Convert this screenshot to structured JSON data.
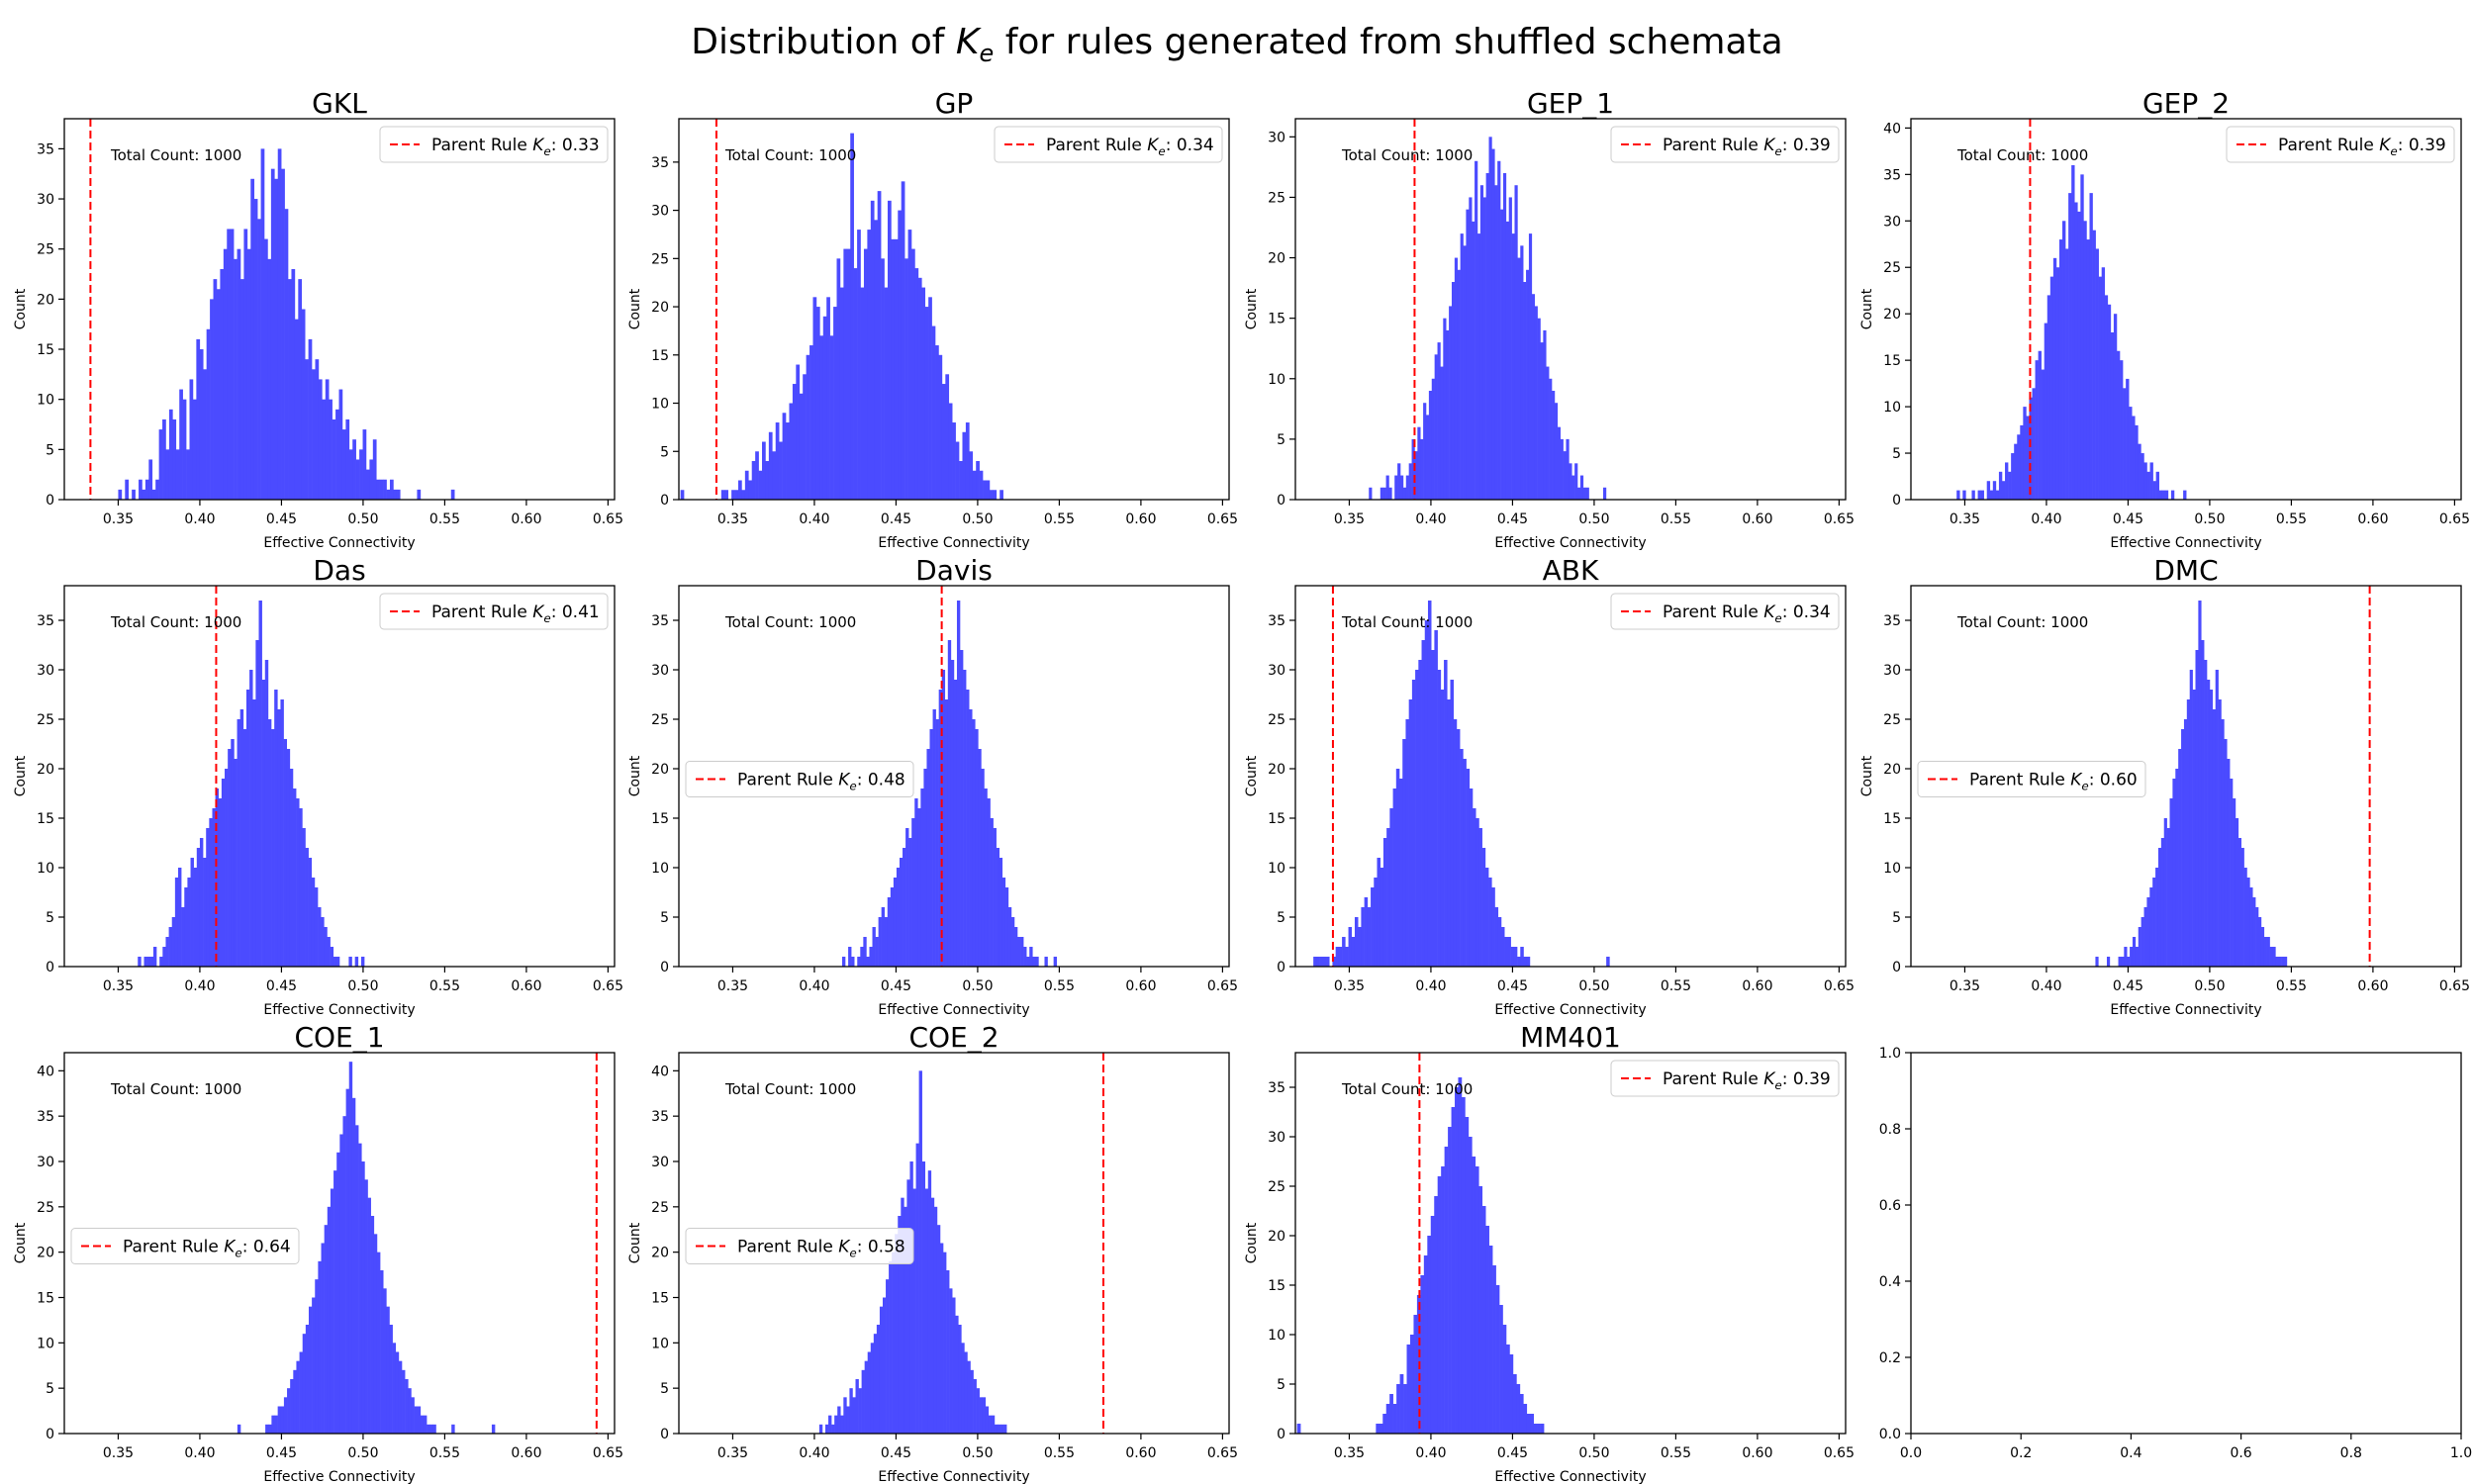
{
  "figure": {
    "title_prefix": "Distribution of ",
    "title_symbol": "K",
    "title_subscript": "e",
    "title_suffix": " for rules generated from shuffled schemata"
  },
  "colors": {
    "hist": "#4b4bff",
    "parent_line": "#ff0000",
    "axes": "#000000"
  },
  "chart_data": [
    {
      "type": "bar",
      "title": "GKL",
      "xlabel": "Effective Connectivity",
      "ylabel": "Count",
      "xlim": [
        0.317,
        0.654
      ],
      "ylim": [
        0,
        38
      ],
      "xticks": [
        "0.35",
        "0.40",
        "0.45",
        "0.50",
        "0.55",
        "0.60",
        "0.65"
      ],
      "yticks": [
        0,
        5,
        10,
        15,
        20,
        25,
        30,
        35
      ],
      "annotation": "Total Count: 1000",
      "parent_ke": 0.333,
      "parent_label": "Parent Rule K_e: 0.33",
      "legend": "upper right",
      "grid": false,
      "bin_start": 0.35,
      "bin_width": 0.00208,
      "values": [
        1,
        0,
        2,
        0,
        1,
        0,
        2,
        1,
        2,
        4,
        1,
        2,
        7,
        8,
        5,
        9,
        8,
        5,
        11,
        10,
        5,
        12,
        10,
        16,
        15,
        13,
        17,
        20,
        22,
        21,
        23,
        25,
        27,
        27,
        24,
        25,
        22,
        27,
        25,
        32,
        30,
        28,
        35,
        26,
        24,
        33,
        32,
        35,
        33,
        29,
        22,
        23,
        18,
        22,
        19,
        14,
        16,
        13,
        14,
        12,
        10,
        12,
        10,
        8,
        9,
        11,
        7,
        8,
        5,
        6,
        4,
        5,
        7,
        3,
        4,
        6,
        2,
        2,
        2,
        1,
        2,
        1,
        1,
        0,
        0,
        0,
        0,
        0,
        1,
        0,
        0,
        0,
        0,
        0,
        0,
        0,
        0,
        0,
        1
      ]
    },
    {
      "type": "bar",
      "title": "GP",
      "xlabel": "Effective Connectivity",
      "ylabel": "Count",
      "xlim": [
        0.317,
        0.654
      ],
      "ylim": [
        0,
        39.5
      ],
      "xticks": [
        "0.35",
        "0.40",
        "0.45",
        "0.50",
        "0.55",
        "0.60",
        "0.65"
      ],
      "yticks": [
        0,
        5,
        10,
        15,
        20,
        25,
        30,
        35
      ],
      "annotation": "Total Count: 1000",
      "parent_ke": 0.34,
      "parent_label": "Parent Rule K_e: 0.34",
      "legend": "upper right",
      "grid": false,
      "bin_start": 0.318,
      "bin_width": 0.00208,
      "values": [
        1,
        0,
        0,
        0,
        0,
        0,
        0,
        0,
        0,
        0,
        0,
        0,
        1,
        1,
        0,
        1,
        1,
        2,
        1,
        3,
        2,
        4,
        5,
        3,
        6,
        4,
        7,
        5,
        8,
        6,
        9,
        8,
        10,
        12,
        14,
        11,
        13,
        15,
        16,
        21,
        20,
        17,
        19,
        21,
        17,
        20,
        25,
        22,
        26,
        26,
        38,
        24,
        28,
        22,
        26,
        28,
        31,
        29,
        32,
        25,
        22,
        31,
        27,
        27,
        30,
        33,
        25,
        28,
        26,
        24,
        23,
        22,
        20,
        21,
        18,
        16,
        15,
        12,
        13,
        10,
        8,
        6,
        4,
        7,
        8,
        5,
        3,
        4,
        3,
        2,
        2,
        1,
        1,
        0,
        1
      ]
    },
    {
      "type": "bar",
      "title": "GEP_1",
      "xlabel": "Effective Connectivity",
      "ylabel": "Count",
      "xlim": [
        0.317,
        0.654
      ],
      "ylim": [
        0,
        31.5
      ],
      "xticks": [
        "0.35",
        "0.40",
        "0.45",
        "0.50",
        "0.55",
        "0.60",
        "0.65"
      ],
      "yticks": [
        0,
        5,
        10,
        15,
        20,
        25,
        30
      ],
      "annotation": "Total Count: 1000",
      "parent_ke": 0.39,
      "parent_label": "Parent Rule K_e: 0.39",
      "legend": "upper right",
      "grid": false,
      "bin_start": 0.362,
      "bin_width": 0.00175,
      "values": [
        1,
        0,
        0,
        0,
        1,
        1,
        2,
        1,
        0,
        2,
        3,
        2,
        1,
        2,
        3,
        5,
        4,
        6,
        5,
        8,
        7,
        9,
        10,
        12,
        13,
        11,
        15,
        14,
        16,
        18,
        20,
        19,
        22,
        21,
        24,
        25,
        23,
        28,
        22,
        26,
        25,
        27,
        30,
        29,
        26,
        28,
        24,
        27,
        23,
        25,
        22,
        26,
        20,
        21,
        18,
        19,
        22,
        17,
        16,
        15,
        13,
        14,
        11,
        10,
        9,
        8,
        6,
        5,
        4,
        5,
        3,
        2,
        3,
        1,
        2,
        1,
        1,
        0,
        0,
        0,
        0,
        0,
        1
      ]
    },
    {
      "type": "bar",
      "title": "GEP_2",
      "xlabel": "Effective Connectivity",
      "ylabel": "Count",
      "xlim": [
        0.317,
        0.654
      ],
      "ylim": [
        0,
        41
      ],
      "xticks": [
        "0.35",
        "0.40",
        "0.45",
        "0.50",
        "0.55",
        "0.60",
        "0.65"
      ],
      "yticks": [
        0,
        5,
        10,
        15,
        20,
        25,
        30,
        35,
        40
      ],
      "annotation": "Total Count: 1000",
      "parent_ke": 0.39,
      "parent_label": "Parent Rule K_e: 0.39",
      "legend": "upper right",
      "grid": false,
      "bin_start": 0.345,
      "bin_width": 0.00185,
      "values": [
        1,
        0,
        1,
        0,
        0,
        1,
        0,
        1,
        1,
        0,
        2,
        1,
        2,
        1,
        3,
        2,
        4,
        3,
        5,
        6,
        7,
        8,
        10,
        9,
        11,
        12,
        15,
        16,
        14,
        19,
        22,
        24,
        26,
        25,
        28,
        30,
        27,
        33,
        36,
        32,
        31,
        35,
        30,
        28,
        33,
        29,
        27,
        24,
        25,
        22,
        21,
        18,
        20,
        16,
        15,
        12,
        13,
        10,
        9,
        8,
        6,
        5,
        4,
        3,
        4,
        2,
        3,
        1,
        1,
        1,
        0,
        1,
        0,
        0,
        0,
        1
      ]
    },
    {
      "type": "bar",
      "title": "Das",
      "xlabel": "Effective Connectivity",
      "ylabel": "Count",
      "xlim": [
        0.317,
        0.654
      ],
      "ylim": [
        0,
        38.5
      ],
      "xticks": [
        "0.35",
        "0.40",
        "0.45",
        "0.50",
        "0.55",
        "0.60",
        "0.65"
      ],
      "yticks": [
        0,
        5,
        10,
        15,
        20,
        25,
        30,
        35
      ],
      "annotation": "Total Count: 1000",
      "parent_ke": 0.41,
      "parent_label": "Parent Rule K_e: 0.41",
      "legend": "upper right",
      "grid": false,
      "bin_start": 0.362,
      "bin_width": 0.0019,
      "values": [
        1,
        0,
        1,
        1,
        1,
        2,
        0,
        1,
        2,
        3,
        4,
        5,
        9,
        10,
        6,
        8,
        9,
        11,
        10,
        12,
        13,
        11,
        14,
        15,
        16,
        18,
        17,
        19,
        20,
        22,
        23,
        21,
        25,
        26,
        24,
        28,
        30,
        27,
        33,
        37,
        29,
        31,
        25,
        24,
        28,
        26,
        27,
        23,
        22,
        20,
        18,
        17,
        16,
        14,
        12,
        11,
        9,
        8,
        6,
        5,
        4,
        3,
        2,
        1,
        1,
        0,
        0,
        0,
        1,
        0,
        1,
        0,
        1
      ]
    },
    {
      "type": "bar",
      "title": "Davis",
      "xlabel": "Effective Connectivity",
      "ylabel": "Count",
      "xlim": [
        0.317,
        0.654
      ],
      "ylim": [
        0,
        38.5
      ],
      "xticks": [
        "0.35",
        "0.40",
        "0.45",
        "0.50",
        "0.55",
        "0.60",
        "0.65"
      ],
      "yticks": [
        0,
        5,
        10,
        15,
        20,
        25,
        30,
        35
      ],
      "annotation": "Total Count: 1000",
      "parent_ke": 0.478,
      "parent_label": "Parent Rule K_e: 0.48",
      "legend": "center left",
      "grid": false,
      "bin_start": 0.417,
      "bin_width": 0.00185,
      "values": [
        1,
        0,
        2,
        1,
        0,
        1,
        2,
        3,
        1,
        2,
        4,
        3,
        5,
        6,
        5,
        7,
        8,
        9,
        10,
        11,
        12,
        14,
        13,
        15,
        17,
        16,
        18,
        20,
        22,
        24,
        26,
        25,
        28,
        30,
        27,
        33,
        31,
        29,
        37,
        32,
        30,
        28,
        26,
        25,
        24,
        22,
        20,
        18,
        17,
        15,
        14,
        12,
        11,
        9,
        8,
        6,
        5,
        4,
        3,
        3,
        2,
        1,
        2,
        1,
        1,
        0,
        0,
        1,
        0,
        0,
        1
      ]
    },
    {
      "type": "bar",
      "title": "ABK",
      "xlabel": "Effective Connectivity",
      "ylabel": "Count",
      "xlim": [
        0.317,
        0.654
      ],
      "ylim": [
        0,
        38.5
      ],
      "xticks": [
        "0.35",
        "0.40",
        "0.45",
        "0.50",
        "0.55",
        "0.60",
        "0.65"
      ],
      "yticks": [
        0,
        5,
        10,
        15,
        20,
        25,
        30,
        35
      ],
      "annotation": "Total Count: 1000",
      "parent_ke": 0.34,
      "parent_label": "Parent Rule K_e: 0.34",
      "legend": "upper right",
      "grid": false,
      "bin_start": 0.328,
      "bin_width": 0.00195,
      "values": [
        1,
        1,
        1,
        1,
        1,
        0,
        1,
        2,
        2,
        3,
        2,
        4,
        3,
        5,
        4,
        6,
        7,
        6,
        8,
        9,
        11,
        10,
        13,
        14,
        16,
        18,
        20,
        19,
        23,
        25,
        27,
        29,
        30,
        31,
        33,
        35,
        37,
        32,
        34,
        30,
        28,
        31,
        27,
        29,
        25,
        24,
        22,
        21,
        20,
        18,
        16,
        15,
        14,
        12,
        10,
        9,
        8,
        6,
        5,
        4,
        3,
        3,
        2,
        2,
        1,
        2,
        1,
        1,
        0,
        0,
        0,
        0,
        0,
        0,
        0,
        0,
        0,
        0,
        0,
        0,
        0,
        0,
        0,
        0,
        0,
        0,
        0,
        0,
        0,
        0,
        0,
        0,
        1
      ]
    },
    {
      "type": "bar",
      "title": "DMC",
      "xlabel": "Effective Connectivity",
      "ylabel": "Count",
      "xlim": [
        0.317,
        0.654
      ],
      "ylim": [
        0,
        38.5
      ],
      "xticks": [
        "0.35",
        "0.40",
        "0.45",
        "0.50",
        "0.55",
        "0.60",
        "0.65"
      ],
      "yticks": [
        0,
        5,
        10,
        15,
        20,
        25,
        30,
        35
      ],
      "annotation": "Total Count: 1000",
      "parent_ke": 0.598,
      "parent_label": "Parent Rule K_e: 0.60",
      "legend": "center left",
      "grid": false,
      "bin_start": 0.43,
      "bin_width": 0.00175,
      "values": [
        1,
        0,
        0,
        0,
        1,
        0,
        0,
        0,
        1,
        1,
        2,
        1,
        2,
        3,
        2,
        4,
        5,
        6,
        7,
        8,
        9,
        10,
        12,
        13,
        15,
        14,
        17,
        19,
        20,
        22,
        24,
        25,
        27,
        30,
        28,
        32,
        37,
        33,
        31,
        29,
        28,
        26,
        30,
        27,
        25,
        23,
        21,
        19,
        17,
        15,
        13,
        12,
        10,
        9,
        8,
        7,
        6,
        5,
        4,
        3,
        3,
        2,
        2,
        1,
        1,
        1,
        1
      ]
    },
    {
      "type": "bar",
      "title": "COE_1",
      "xlabel": "Effective Connectivity",
      "ylabel": "Count",
      "xlim": [
        0.317,
        0.654
      ],
      "ylim": [
        0,
        42
      ],
      "xticks": [
        "0.35",
        "0.40",
        "0.45",
        "0.50",
        "0.55",
        "0.60",
        "0.65"
      ],
      "yticks": [
        0,
        5,
        10,
        15,
        20,
        25,
        30,
        35,
        40
      ],
      "annotation": "Total Count: 1000",
      "parent_ke": 0.643,
      "parent_label": "Parent Rule K_e: 0.64",
      "legend": "center left",
      "grid": false,
      "bin_start": 0.423,
      "bin_width": 0.0019,
      "values": [
        1,
        0,
        0,
        0,
        0,
        0,
        0,
        0,
        0,
        1,
        1,
        2,
        2,
        3,
        3,
        4,
        5,
        6,
        7,
        8,
        9,
        11,
        12,
        14,
        15,
        17,
        19,
        21,
        23,
        25,
        27,
        29,
        31,
        33,
        35,
        38,
        41,
        37,
        34,
        32,
        30,
        28,
        26,
        24,
        22,
        20,
        18,
        16,
        14,
        12,
        10,
        9,
        8,
        7,
        6,
        5,
        4,
        3,
        3,
        2,
        2,
        1,
        1,
        1,
        0,
        0,
        0,
        0,
        0,
        1,
        0,
        0,
        0,
        0,
        0,
        0,
        0,
        0,
        0,
        0,
        0,
        0,
        1
      ]
    },
    {
      "type": "bar",
      "title": "COE_2",
      "xlabel": "Effective Connectivity",
      "ylabel": "Count",
      "xlim": [
        0.317,
        0.654
      ],
      "ylim": [
        0,
        42
      ],
      "xticks": [
        "0.35",
        "0.40",
        "0.45",
        "0.50",
        "0.55",
        "0.60",
        "0.65"
      ],
      "yticks": [
        0,
        5,
        10,
        15,
        20,
        25,
        30,
        35,
        40
      ],
      "annotation": "Total Count: 1000",
      "parent_ke": 0.577,
      "parent_label": "Parent Rule K_e: 0.58",
      "legend": "center left",
      "grid": false,
      "bin_start": 0.403,
      "bin_width": 0.00185,
      "values": [
        1,
        0,
        1,
        2,
        1,
        2,
        3,
        2,
        4,
        3,
        5,
        4,
        6,
        5,
        7,
        8,
        9,
        10,
        11,
        12,
        14,
        15,
        17,
        19,
        20,
        22,
        24,
        26,
        25,
        28,
        30,
        27,
        32,
        40,
        30,
        27,
        29,
        26,
        25,
        23,
        21,
        20,
        18,
        16,
        15,
        13,
        12,
        10,
        9,
        8,
        7,
        6,
        5,
        4,
        4,
        3,
        2,
        2,
        1,
        1,
        1,
        1
      ]
    },
    {
      "type": "bar",
      "title": "MM401",
      "xlabel": "Effective Connectivity",
      "ylabel": "Count",
      "xlim": [
        0.317,
        0.654
      ],
      "ylim": [
        0,
        38.5
      ],
      "xticks": [
        "0.35",
        "0.40",
        "0.45",
        "0.50",
        "0.55",
        "0.60",
        "0.65"
      ],
      "yticks": [
        0,
        5,
        10,
        15,
        20,
        25,
        30,
        35
      ],
      "annotation": "Total Count: 1000",
      "parent_ke": 0.393,
      "parent_label": "Parent Rule K_e: 0.39",
      "legend": "upper right",
      "grid": false,
      "bin_start": 0.318,
      "bin_width": 0.0021,
      "values": [
        1,
        0,
        0,
        0,
        0,
        0,
        0,
        0,
        0,
        0,
        0,
        0,
        0,
        0,
        0,
        0,
        0,
        0,
        0,
        0,
        0,
        0,
        0,
        1,
        1,
        2,
        3,
        4,
        3,
        5,
        6,
        5,
        9,
        10,
        12,
        14,
        16,
        18,
        20,
        22,
        24,
        26,
        27,
        29,
        31,
        33,
        35,
        36,
        34,
        32,
        30,
        28,
        27,
        25,
        23,
        21,
        19,
        17,
        15,
        13,
        11,
        9,
        8,
        6,
        5,
        4,
        3,
        2,
        2,
        1,
        1,
        1
      ]
    },
    {
      "type": "empty",
      "xlim": [
        0,
        1
      ],
      "ylim": [
        0,
        1
      ],
      "xticks": [
        "0.0",
        "0.2",
        "0.4",
        "0.6",
        "0.8",
        "1.0"
      ],
      "yticks": [
        "0.0",
        "0.2",
        "0.4",
        "0.6",
        "0.8",
        "1.0"
      ]
    }
  ]
}
